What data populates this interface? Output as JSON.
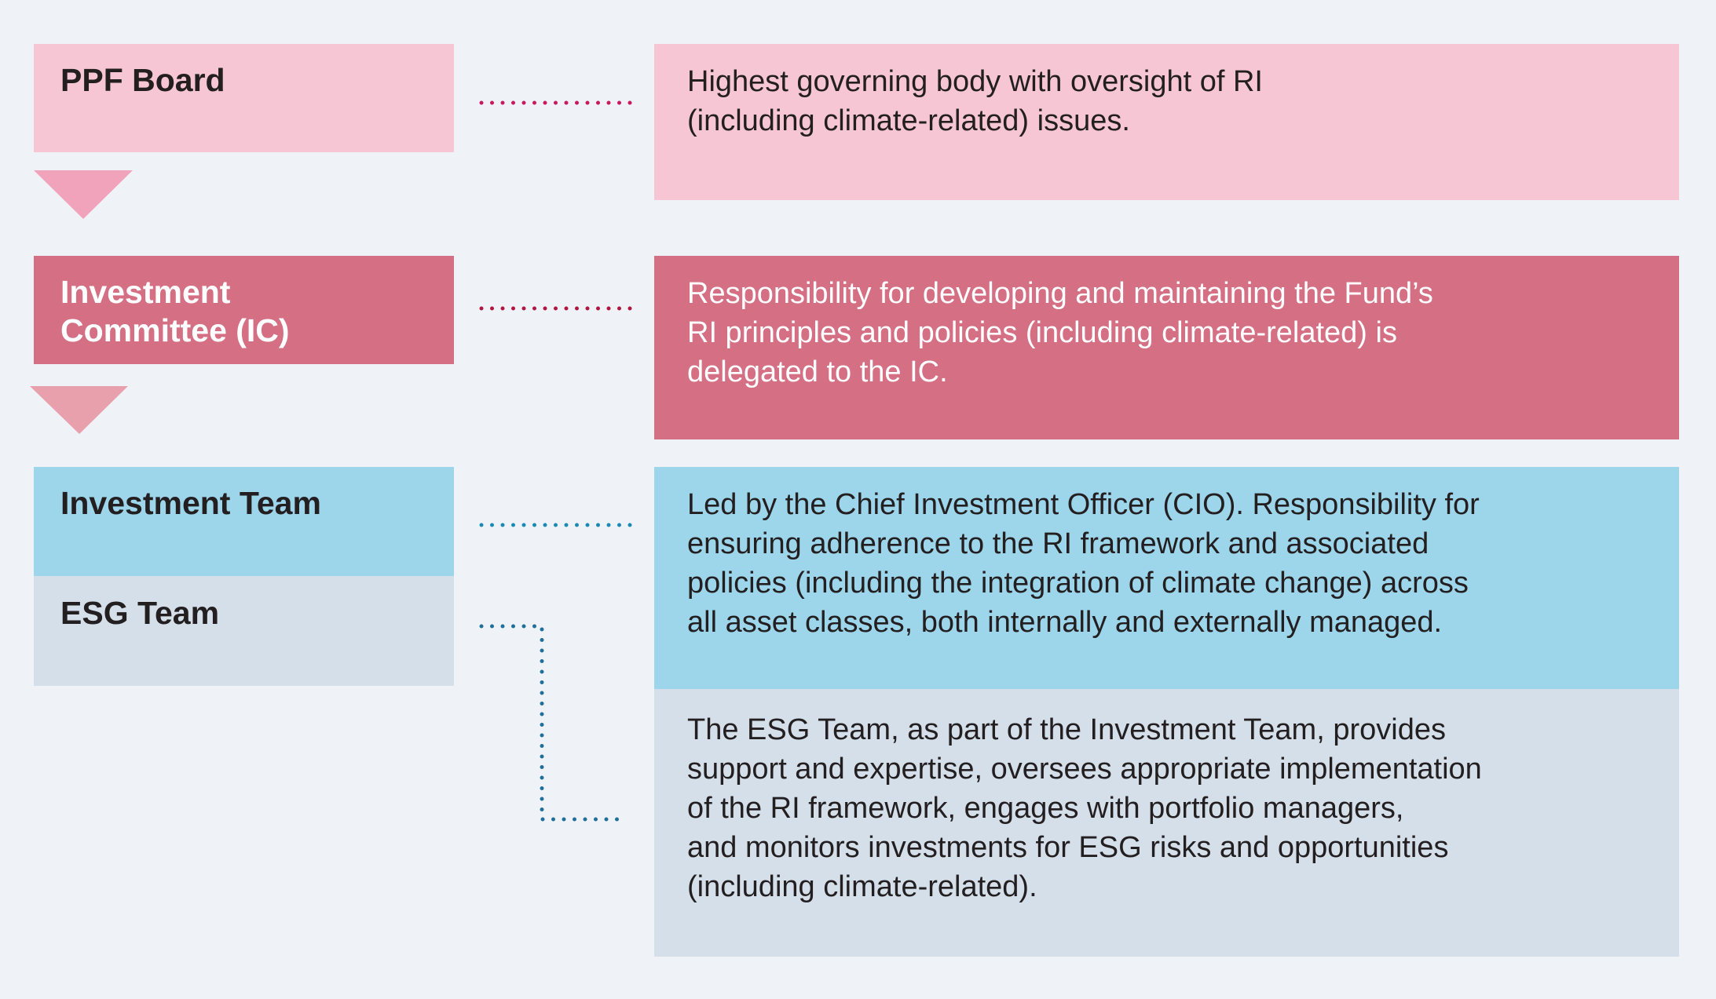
{
  "nodes": [
    {
      "label": [
        "PPF Board"
      ],
      "description": [
        "Highest governing body with oversight of RI",
        "(including climate-related) issues."
      ]
    },
    {
      "label": [
        "Investment",
        "Committee (IC)"
      ],
      "description": [
        "Responsibility for developing and maintaining the Fund’s",
        "RI principles and policies (including climate-related) is",
        "delegated to the IC."
      ]
    },
    {
      "label": [
        "Investment Team"
      ],
      "description": [
        "Led by the Chief Investment Officer (CIO). Responsibility for",
        "ensuring adherence to the RI framework and associated",
        "policies (including the integration of climate change) across",
        "all asset classes, both internally and externally managed."
      ]
    },
    {
      "label": [
        "ESG Team"
      ],
      "description": [
        "The ESG Team, as part of the Investment Team, provides",
        "support and expertise, oversees appropriate implementation",
        "of the RI framework, engages with portfolio managers,",
        "and monitors investments for ESG risks and opportunities",
        "(including climate-related)."
      ]
    }
  ]
}
